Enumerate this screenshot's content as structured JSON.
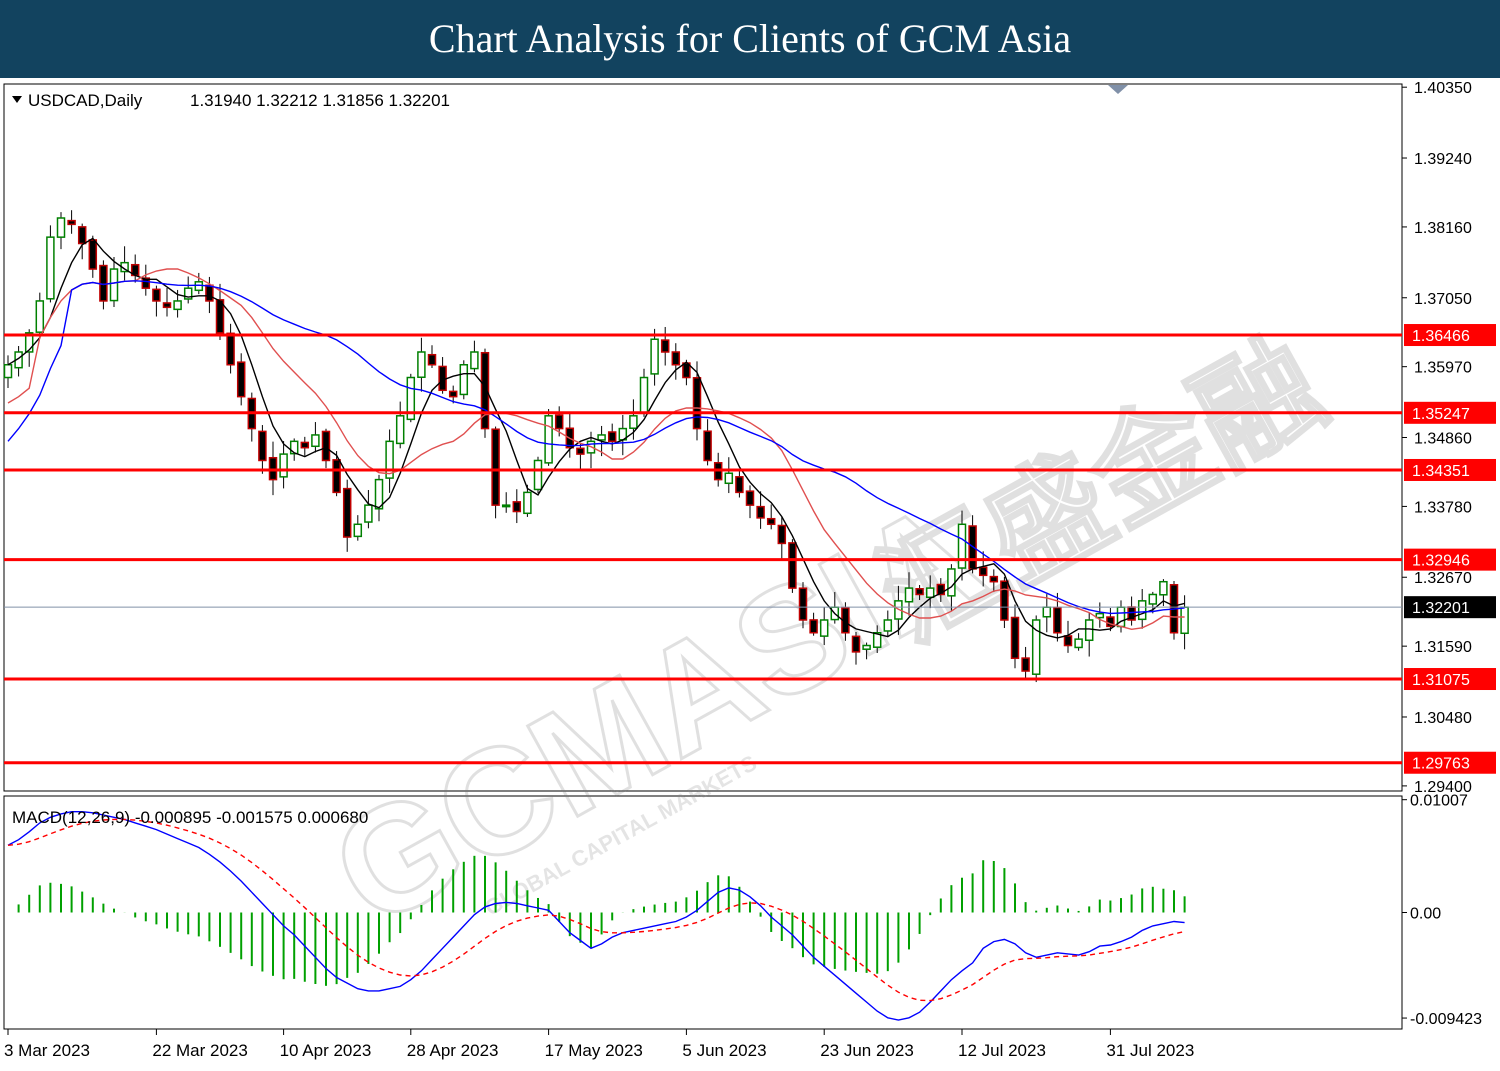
{
  "banner": {
    "title": "Chart Analysis for Clients of GCM Asia"
  },
  "watermark": {
    "main": "GCMASIA",
    "sub": "GLOBAL CAPITAL MARKETS",
    "cn": "汇盛金融"
  },
  "colors": {
    "bull": "#008000",
    "bear": "#c00000",
    "sr_line": "#ff0000",
    "sr_box": "#ff0000",
    "ma_fast": "#000000",
    "ma_mid": "#e05050",
    "ma_slow": "#0000ff",
    "macd_hist": "#00a000",
    "macd_line": "#0000ff",
    "macd_signal": "#ff0000",
    "price_line": "#8090a8",
    "banner": "#12435f"
  },
  "chart_data": [
    {
      "type": "candlestick",
      "title": "USDCAD,Daily",
      "ohlc_readout": "1.31940 1.32212 1.31856 1.32201",
      "y_axis_ticks": [
        "1.40350",
        "1.39240",
        "1.38160",
        "1.37050",
        "1.35970",
        "1.34860",
        "1.33780",
        "1.32670",
        "1.31590",
        "1.30480",
        "1.29400"
      ],
      "ylim": [
        1.2932,
        1.404
      ],
      "x_axis_labels": [
        "3 Mar 2023",
        "22 Mar 2023",
        "10 Apr 2023",
        "28 Apr 2023",
        "17 May 2023",
        "5 Jun 2023",
        "23 Jun 2023",
        "12 Jul 2023",
        "31 Jul 2023"
      ],
      "x_label_bar_index": [
        0,
        14,
        26,
        38,
        51,
        64,
        77,
        90,
        104
      ],
      "current_price": 1.32201,
      "current_price_label": "1.32201",
      "support_resistance": [
        {
          "value": 1.36466,
          "label": "1.36466"
        },
        {
          "value": 1.35247,
          "label": "1.35247"
        },
        {
          "value": 1.34351,
          "label": "1.34351"
        },
        {
          "value": 1.32946,
          "label": "1.32946"
        },
        {
          "value": 1.31075,
          "label": "1.31075"
        },
        {
          "value": 1.29763,
          "label": "1.29763"
        }
      ],
      "close_approx": [
        1.36,
        1.362,
        1.365,
        1.37,
        1.38,
        1.383,
        1.382,
        1.379,
        1.375,
        1.37,
        1.375,
        1.376,
        1.374,
        1.372,
        1.37,
        1.369,
        1.37,
        1.372,
        1.373,
        1.37,
        1.365,
        1.36,
        1.355,
        1.35,
        1.345,
        1.342,
        1.346,
        1.348,
        1.347,
        1.349,
        1.345,
        1.34,
        1.333,
        1.335,
        1.338,
        1.342,
        1.348,
        1.352,
        1.358,
        1.362,
        1.36,
        1.356,
        1.355,
        1.36,
        1.362,
        1.35,
        1.338,
        1.338,
        1.337,
        1.34,
        1.345,
        1.352,
        1.35,
        1.347,
        1.346,
        1.348,
        1.349,
        1.348,
        1.35,
        1.352,
        1.358,
        1.364,
        1.362,
        1.36,
        1.358,
        1.35,
        1.345,
        1.342,
        1.343,
        1.34,
        1.338,
        1.336,
        1.335,
        1.332,
        1.325,
        1.32,
        1.318,
        1.32,
        1.322,
        1.318,
        1.315,
        1.316,
        1.318,
        1.32,
        1.323,
        1.325,
        1.324,
        1.325,
        1.324,
        1.328,
        1.335,
        1.328,
        1.327,
        1.326,
        1.32,
        1.314,
        1.312,
        1.32,
        1.322,
        1.318,
        1.316,
        1.317,
        1.32,
        1.321,
        1.319,
        1.322,
        1.32,
        1.323,
        1.324,
        1.326,
        1.318,
        1.322
      ],
      "series": [
        {
          "name": "",
          "kind": "ma_fast"
        },
        {
          "name": "",
          "kind": "ma_mid"
        },
        {
          "name": "",
          "kind": "ma_slow"
        }
      ]
    },
    {
      "type": "bar+line",
      "title": "MACD(12,26,9) -0.000895 -0.001575 0.000680",
      "y_axis_ticks": [
        "0.01007",
        "0.00",
        "-0.009423"
      ],
      "ylim": [
        -0.0104,
        0.0104
      ],
      "series": [
        {
          "name": "",
          "kind": "histogram"
        },
        {
          "name": "",
          "kind": "macd"
        },
        {
          "name": "",
          "kind": "signal"
        }
      ],
      "macd_approx": [
        0.006,
        0.0065,
        0.0072,
        0.008,
        0.0085,
        0.0088,
        0.009,
        0.009,
        0.0089,
        0.0087,
        0.0085,
        0.0083,
        0.008,
        0.0077,
        0.0074,
        0.007,
        0.0066,
        0.0062,
        0.0058,
        0.0052,
        0.0045,
        0.0037,
        0.0028,
        0.0018,
        0.0008,
        -0.0002,
        -0.0012,
        -0.002,
        -0.003,
        -0.004,
        -0.005,
        -0.0058,
        -0.0063,
        -0.0068,
        -0.007,
        -0.007,
        -0.0068,
        -0.0066,
        -0.006,
        -0.0052,
        -0.0042,
        -0.0032,
        -0.0022,
        -0.0012,
        -0.0002,
        0.0005,
        0.0008,
        0.0009,
        0.0008,
        0.0006,
        0.0004,
        0.0002,
        -0.0008,
        -0.0018,
        -0.0025,
        -0.0032,
        -0.0028,
        -0.0022,
        -0.0018,
        -0.0016,
        -0.0014,
        -0.0012,
        -0.001,
        -0.0008,
        -0.0004,
        0.0002,
        0.001,
        0.0018,
        0.0022,
        0.002,
        0.0014,
        0.0006,
        -0.0004,
        -0.0012,
        -0.002,
        -0.003,
        -0.004,
        -0.0048,
        -0.0056,
        -0.0064,
        -0.0072,
        -0.008,
        -0.0088,
        -0.0094,
        -0.0096,
        -0.0094,
        -0.0089,
        -0.008,
        -0.007,
        -0.006,
        -0.0052,
        -0.0045,
        -0.0032,
        -0.0026,
        -0.0024,
        -0.0028,
        -0.0036,
        -0.004,
        -0.0038,
        -0.0036,
        -0.0037,
        -0.0038,
        -0.0035,
        -0.003,
        -0.0029,
        -0.0026,
        -0.0022,
        -0.0016,
        -0.0012,
        -0.001,
        -0.0008,
        -0.0009
      ]
    }
  ]
}
